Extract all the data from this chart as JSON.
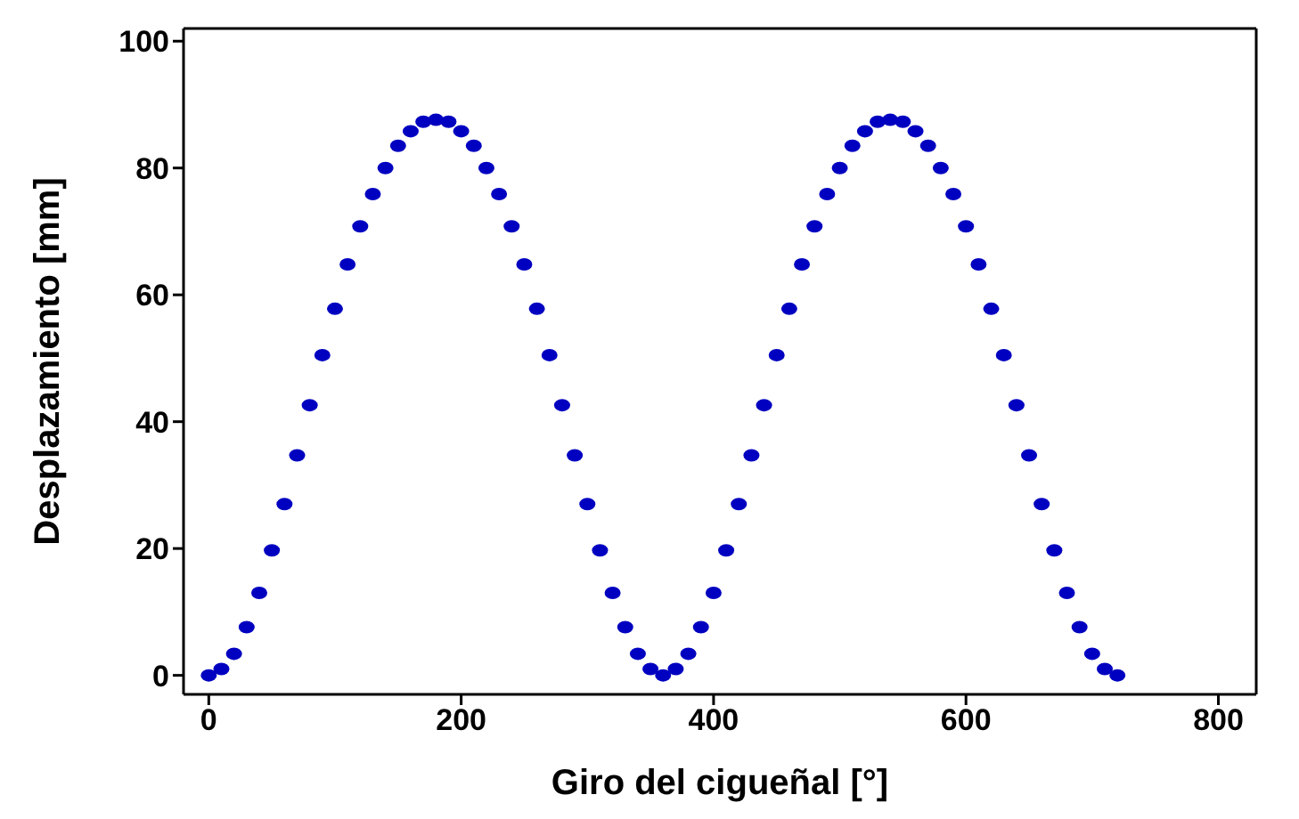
{
  "chart_data": {
    "type": "scatter",
    "xlabel": "Giro del cigueñal [°]",
    "ylabel": "Desplazamiento [mm]",
    "x": [
      0,
      10,
      20,
      30,
      40,
      50,
      60,
      70,
      80,
      90,
      100,
      110,
      120,
      130,
      140,
      150,
      160,
      170,
      180,
      190,
      200,
      210,
      220,
      230,
      240,
      250,
      260,
      270,
      280,
      290,
      300,
      310,
      320,
      330,
      340,
      350,
      360,
      370,
      380,
      390,
      400,
      410,
      420,
      430,
      440,
      450,
      460,
      470,
      480,
      490,
      500,
      510,
      520,
      530,
      540,
      550,
      560,
      570,
      580,
      590,
      600,
      610,
      620,
      630,
      640,
      650,
      660,
      670,
      680,
      690,
      700,
      710,
      720
    ],
    "series": [
      {
        "color": "#0000c0",
        "values": [
          0,
          1.0,
          3.4,
          7.6,
          13.0,
          19.7,
          27.0,
          34.7,
          42.6,
          50.5,
          57.8,
          64.8,
          70.8,
          75.9,
          80.0,
          83.5,
          85.8,
          87.3,
          87.6,
          87.3,
          85.8,
          83.5,
          80.0,
          75.9,
          70.8,
          64.8,
          57.8,
          50.5,
          42.6,
          34.7,
          27.0,
          19.7,
          13.0,
          7.6,
          3.4,
          1.0,
          0,
          1.0,
          3.4,
          7.6,
          13.0,
          19.7,
          27.0,
          34.7,
          42.6,
          50.5,
          57.8,
          64.8,
          70.8,
          75.9,
          80.0,
          83.5,
          85.8,
          87.3,
          87.6,
          87.3,
          85.8,
          83.5,
          80.0,
          75.9,
          70.8,
          64.8,
          57.8,
          50.5,
          42.6,
          34.7,
          27.0,
          19.7,
          13.0,
          7.6,
          3.4,
          1.0,
          0
        ]
      }
    ],
    "xlim": [
      -20,
      830
    ],
    "ylim": [
      -3,
      102
    ],
    "xticks": [
      0,
      200,
      400,
      600,
      800
    ],
    "yticks": [
      0,
      20,
      40,
      60,
      80,
      100
    ],
    "marker": "circle"
  }
}
